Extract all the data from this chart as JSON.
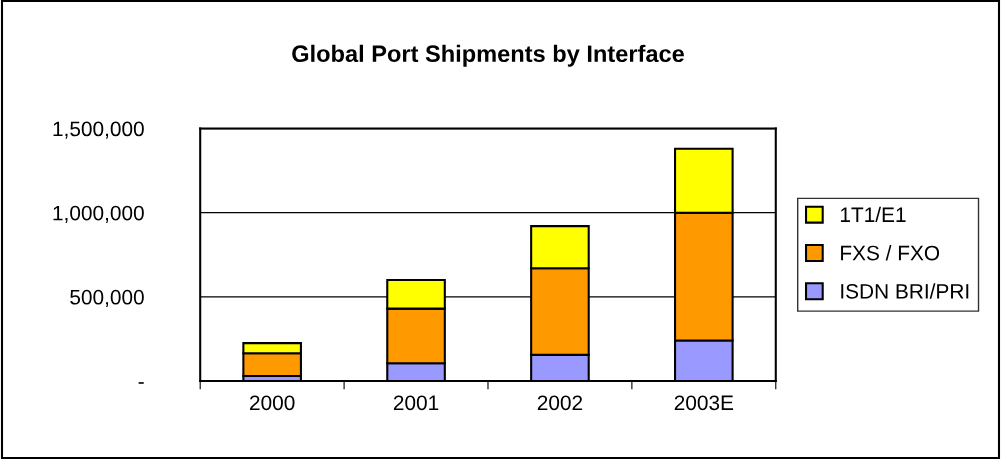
{
  "chart_data": {
    "type": "bar",
    "title": "Global Port Shipments by Interface",
    "stacked": true,
    "categories": [
      "2000",
      "2001",
      "2002",
      "2003E"
    ],
    "series": [
      {
        "name": "ISDN BRI/PRI",
        "color": "#9999ff",
        "values": [
          30000,
          105000,
          155000,
          240000
        ]
      },
      {
        "name": "FXS / FXO",
        "color": "#ff9900",
        "values": [
          135000,
          325000,
          515000,
          760000
        ]
      },
      {
        "name": "1T1/E1",
        "color": "#ffff00",
        "values": [
          60000,
          170000,
          250000,
          380000
        ]
      }
    ],
    "ylim": [
      0,
      1500000
    ],
    "yticks": [
      {
        "value": 0,
        "label": "-"
      },
      {
        "value": 500000,
        "label": "500,000"
      },
      {
        "value": 1000000,
        "label": "1,000,000"
      },
      {
        "value": 1500000,
        "label": "1,500,000"
      }
    ],
    "grid": "y",
    "legend": "right"
  }
}
